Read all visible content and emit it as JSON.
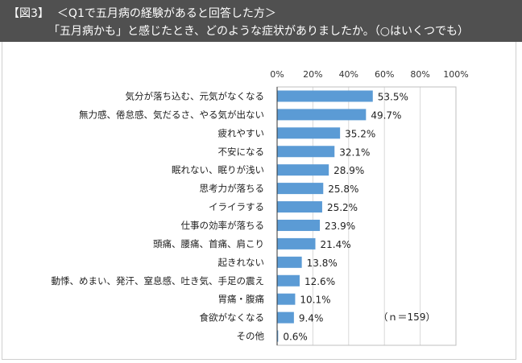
{
  "header": {
    "figure_label": "【図3】",
    "line1": "＜Q1で五月病の経験があると回答した方＞",
    "line2": "「五月病かも」と感じたとき、どのような症状がありましたか。（○はいくつでも）"
  },
  "chart_data": {
    "type": "bar",
    "orientation": "horizontal",
    "categories": [
      "気分が落ち込む、元気がなくなる",
      "無力感、倦怠感、気だるさ、やる気が出ない",
      "疲れやすい",
      "不安になる",
      "眠れない、眠りが浅い",
      "思考力が落ちる",
      "イライラする",
      "仕事の効率が落ちる",
      "頭痛、腰痛、首痛、肩こり",
      "起きれない",
      "動悸、めまい、発汗、窒息感、吐き気、手足の震え",
      "胃痛・腹痛",
      "食欲がなくなる",
      "その他"
    ],
    "values": [
      53.5,
      49.7,
      35.2,
      32.1,
      28.9,
      25.8,
      25.2,
      23.9,
      21.4,
      13.8,
      12.6,
      10.1,
      9.4,
      0.6
    ],
    "value_labels": [
      "53.5%",
      "49.7%",
      "35.2%",
      "32.1%",
      "28.9%",
      "25.8%",
      "25.2%",
      "23.9%",
      "21.4%",
      "13.8%",
      "12.6%",
      "10.1%",
      "9.4%",
      "0.6%"
    ],
    "xticks": [
      "0%",
      "20%",
      "40%",
      "60%",
      "80%",
      "100%"
    ],
    "xlim": [
      0,
      100
    ],
    "bar_color": "#5b9bd5",
    "annotation": "（ｎ＝159）",
    "grid": true
  }
}
